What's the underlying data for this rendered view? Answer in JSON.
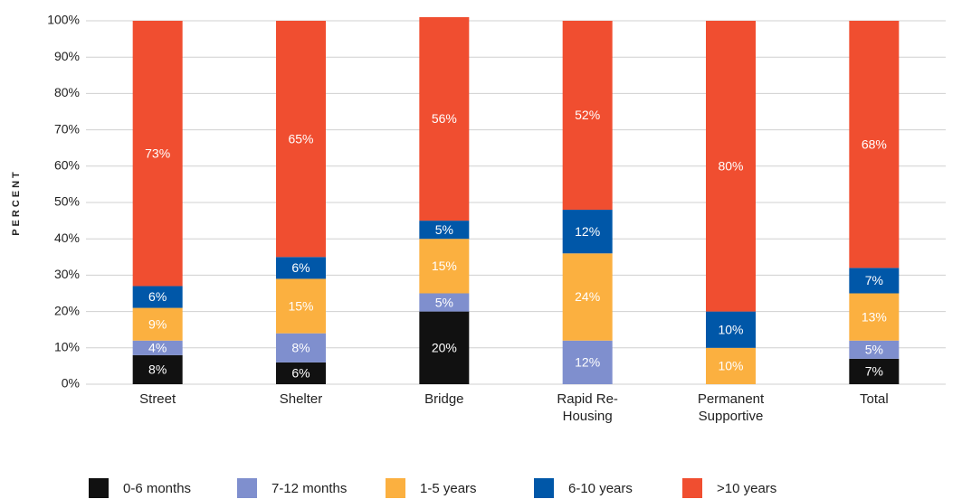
{
  "chart_data": {
    "type": "stacked_bar",
    "y_label": "PERCENT",
    "categories": [
      "Street",
      "Shelter",
      "Bridge",
      "Rapid Re-Housing",
      "Permanent Supportive",
      "Total"
    ],
    "series": [
      {
        "name": "0-6 months",
        "color": "#111111",
        "values": [
          8,
          6,
          20,
          0,
          0,
          7
        ],
        "value_labels": [
          "8%",
          "6%",
          "20%",
          null,
          null,
          "7%"
        ]
      },
      {
        "name": "7-12 months",
        "color": "#7f8fce",
        "values": [
          4,
          8,
          5,
          12,
          0,
          5
        ],
        "value_labels": [
          "4%",
          "8%",
          "5%",
          "12%",
          null,
          "5%"
        ]
      },
      {
        "name": "1-5 years",
        "color": "#fbb040",
        "values": [
          9,
          15,
          15,
          24,
          10,
          13
        ],
        "value_labels": [
          "9%",
          "15%",
          "15%",
          "24%",
          "10%",
          "13%"
        ]
      },
      {
        "name": "6-10 years",
        "color": "#0057a8",
        "values": [
          6,
          6,
          5,
          12,
          10,
          7
        ],
        "value_labels": [
          "6%",
          "6%",
          "5%",
          "12%",
          "10%",
          "7%"
        ]
      },
      {
        "name": ">10 years",
        "color": "#f04e30",
        "values": [
          73,
          65,
          56,
          52,
          80,
          68
        ],
        "value_labels": [
          "73%",
          "65%",
          "56%",
          "52%",
          "80%",
          "68%"
        ]
      }
    ],
    "ylim": [
      0,
      100
    ],
    "yticks": [
      {
        "value": 0,
        "label": "0%"
      },
      {
        "value": 10,
        "label": "10%"
      },
      {
        "value": 20,
        "label": "20%"
      },
      {
        "value": 30,
        "label": "30%"
      },
      {
        "value": 40,
        "label": "40%"
      },
      {
        "value": 50,
        "label": "50%"
      },
      {
        "value": 60,
        "label": "60%"
      },
      {
        "value": 70,
        "label": "70%"
      },
      {
        "value": 80,
        "label": "80%"
      },
      {
        "value": 90,
        "label": "90%"
      },
      {
        "value": 100,
        "label": "100%"
      }
    ],
    "grid": true
  }
}
